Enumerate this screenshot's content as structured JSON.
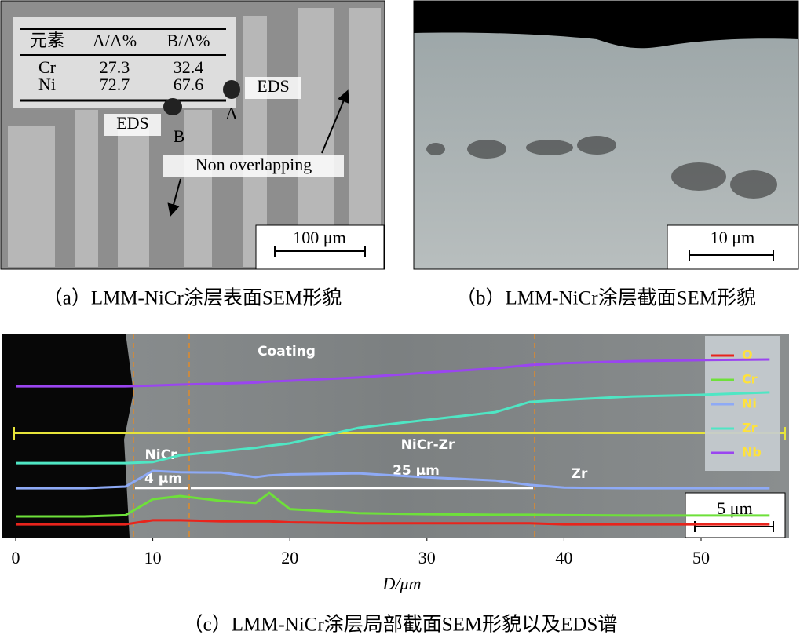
{
  "panel_a": {
    "table": {
      "header": [
        "元素",
        "A/A%",
        "B/A%"
      ],
      "rows": [
        [
          "Cr",
          27.3,
          32.4
        ],
        [
          "Ni",
          72.7,
          67.6
        ]
      ]
    },
    "labels": [
      "EDS",
      "A",
      "EDS",
      "B",
      "Non overlapping"
    ],
    "scale_bar": "100 μm",
    "caption": "（a）LMM-NiCr涂层表面SEM形貌"
  },
  "panel_b": {
    "scale_bar": "10 μm",
    "caption": "（b）LMM-NiCr涂层截面SEM形貌"
  },
  "chart_data": {
    "type": "line",
    "caption": "（c）LMM-NiCr涂层局部截面SEM形貌以及EDS谱",
    "x_label": "D/μm",
    "annotations": [
      "Coating",
      "NiCr",
      "NiCr-Zr",
      "Zr",
      "4 μm",
      "25 μm"
    ],
    "scale_bar": "5 μm",
    "x": [
      0,
      5,
      8,
      10,
      12,
      15,
      17.5,
      18.5,
      20,
      25,
      30,
      35,
      37.5,
      40,
      45,
      50,
      55
    ],
    "xlim": [
      0,
      56.4
    ],
    "xticks": [
      0,
      10,
      20,
      30,
      40,
      50
    ],
    "ylim": [
      0,
      100
    ],
    "series": [
      {
        "name": "O",
        "color": "#e8241c",
        "values": [
          6.5,
          6.5,
          6.5,
          8.5,
          8.5,
          8,
          8,
          8,
          7.5,
          7,
          7,
          7,
          7,
          6.5,
          6.5,
          6.5,
          6.5
        ]
      },
      {
        "name": "Cr",
        "color": "#6ee03a",
        "values": [
          10.4,
          10.4,
          11,
          18.8,
          20.4,
          18,
          17,
          21.9,
          14,
          12,
          11.5,
          11.2,
          11.2,
          11,
          10.8,
          10.8,
          10.8
        ]
      },
      {
        "name": "Ni",
        "color": "#8eaaf6",
        "values": [
          24.2,
          24.2,
          25,
          32.7,
          32,
          31.9,
          29.6,
          30.5,
          31,
          31.5,
          29.5,
          28,
          25.8,
          24.5,
          24.2,
          24.2,
          24.2
        ]
      },
      {
        "name": "Zr",
        "color": "#4fe6c4",
        "values": [
          36.5,
          36.5,
          36.5,
          37,
          40.4,
          42.3,
          44,
          45,
          46.2,
          53.8,
          57.7,
          61.5,
          66.5,
          67.5,
          69.2,
          70,
          71.2
        ]
      },
      {
        "name": "Nb",
        "color": "#9a45f0",
        "values": [
          74.2,
          74.2,
          74.2,
          74.5,
          75,
          75.5,
          76,
          76.5,
          76.9,
          78.5,
          80.8,
          83,
          84.6,
          85.5,
          86.5,
          87,
          87.3
        ]
      }
    ]
  }
}
